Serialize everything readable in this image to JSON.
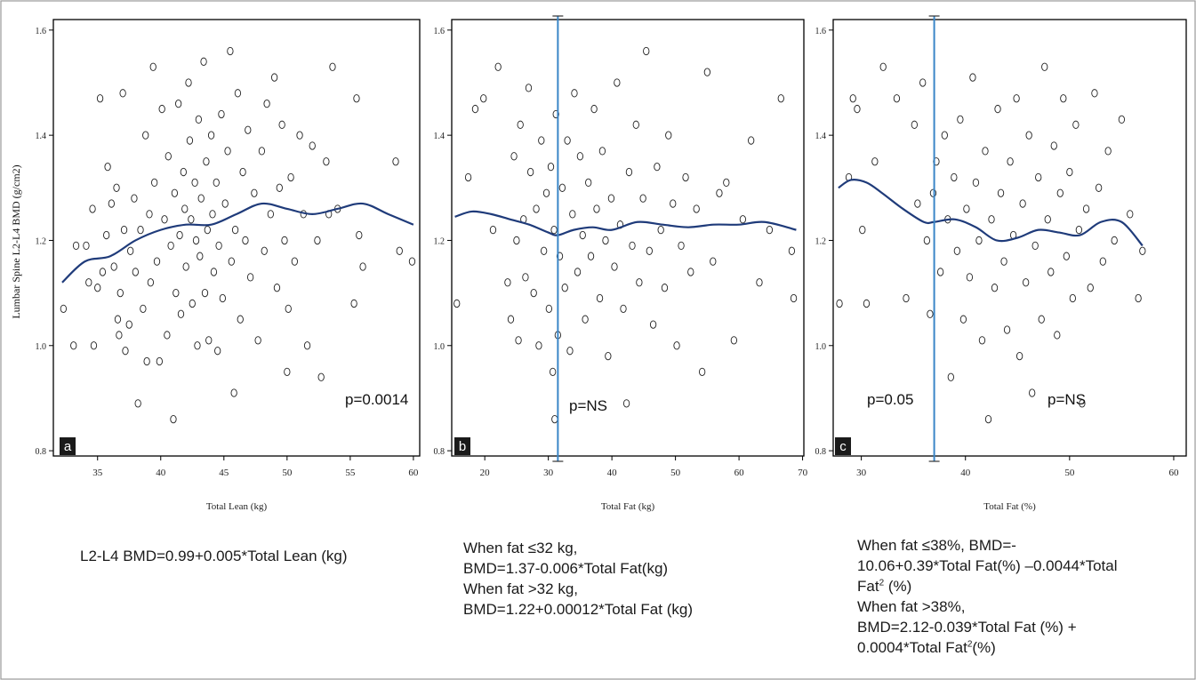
{
  "y_axis_label": "Lumbar Spine L2-L4 BMD (g/cm2)",
  "chart_data": [
    {
      "type": "scatter",
      "panel_letter": "a",
      "xlabel": "Total Lean (kg)",
      "ylabel": "Lumbar Spine L2-L4 BMD (g/cm2)",
      "xlim": [
        31.5,
        60.5
      ],
      "ylim": [
        0.79,
        1.62
      ],
      "xticks": [
        35,
        40,
        45,
        50,
        55,
        60
      ],
      "yticks": [
        0.8,
        1.0,
        1.2,
        1.4,
        1.6
      ],
      "p_text": "p=0.0014",
      "smooth_line": {
        "x": [
          32.2,
          34,
          36,
          38,
          40,
          42,
          44,
          46,
          48,
          50,
          52,
          54,
          56,
          58,
          60
        ],
        "y": [
          1.12,
          1.16,
          1.17,
          1.2,
          1.22,
          1.23,
          1.23,
          1.25,
          1.27,
          1.26,
          1.25,
          1.26,
          1.27,
          1.25,
          1.23
        ]
      },
      "points": [
        [
          32.3,
          1.07
        ],
        [
          33.1,
          1.0
        ],
        [
          33.3,
          1.19
        ],
        [
          34.1,
          1.19
        ],
        [
          34.3,
          1.12
        ],
        [
          34.6,
          1.26
        ],
        [
          34.7,
          1.0
        ],
        [
          35.0,
          1.11
        ],
        [
          35.2,
          1.47
        ],
        [
          35.4,
          1.14
        ],
        [
          35.7,
          1.21
        ],
        [
          35.8,
          1.34
        ],
        [
          36.1,
          1.27
        ],
        [
          36.3,
          1.15
        ],
        [
          36.5,
          1.3
        ],
        [
          36.6,
          1.05
        ],
        [
          36.7,
          1.02
        ],
        [
          36.8,
          1.1
        ],
        [
          37.0,
          1.48
        ],
        [
          37.1,
          1.22
        ],
        [
          37.2,
          0.99
        ],
        [
          37.5,
          1.04
        ],
        [
          37.6,
          1.18
        ],
        [
          37.9,
          1.28
        ],
        [
          38.0,
          1.14
        ],
        [
          38.2,
          0.89
        ],
        [
          38.4,
          1.22
        ],
        [
          38.6,
          1.07
        ],
        [
          38.8,
          1.4
        ],
        [
          38.9,
          0.97
        ],
        [
          39.1,
          1.25
        ],
        [
          39.2,
          1.12
        ],
        [
          39.4,
          1.53
        ],
        [
          39.5,
          1.31
        ],
        [
          39.7,
          1.16
        ],
        [
          39.9,
          0.97
        ],
        [
          40.1,
          1.45
        ],
        [
          40.3,
          1.24
        ],
        [
          40.5,
          1.02
        ],
        [
          40.6,
          1.36
        ],
        [
          40.8,
          1.19
        ],
        [
          41.0,
          0.86
        ],
        [
          41.1,
          1.29
        ],
        [
          41.2,
          1.1
        ],
        [
          41.4,
          1.46
        ],
        [
          41.5,
          1.21
        ],
        [
          41.6,
          1.06
        ],
        [
          41.8,
          1.33
        ],
        [
          41.9,
          1.26
        ],
        [
          42.0,
          1.15
        ],
        [
          42.2,
          1.5
        ],
        [
          42.3,
          1.39
        ],
        [
          42.4,
          1.24
        ],
        [
          42.5,
          1.08
        ],
        [
          42.7,
          1.31
        ],
        [
          42.8,
          1.2
        ],
        [
          42.9,
          1.0
        ],
        [
          43.0,
          1.43
        ],
        [
          43.1,
          1.17
        ],
        [
          43.2,
          1.28
        ],
        [
          43.4,
          1.54
        ],
        [
          43.5,
          1.1
        ],
        [
          43.6,
          1.35
        ],
        [
          43.7,
          1.22
        ],
        [
          43.8,
          1.01
        ],
        [
          44.0,
          1.4
        ],
        [
          44.1,
          1.25
        ],
        [
          44.2,
          1.14
        ],
        [
          44.4,
          1.31
        ],
        [
          44.5,
          0.99
        ],
        [
          44.6,
          1.19
        ],
        [
          44.8,
          1.44
        ],
        [
          44.9,
          1.09
        ],
        [
          45.1,
          1.27
        ],
        [
          45.3,
          1.37
        ],
        [
          45.5,
          1.56
        ],
        [
          45.6,
          1.16
        ],
        [
          45.8,
          0.91
        ],
        [
          45.9,
          1.22
        ],
        [
          46.1,
          1.48
        ],
        [
          46.3,
          1.05
        ],
        [
          46.5,
          1.33
        ],
        [
          46.7,
          1.2
        ],
        [
          46.9,
          1.41
        ],
        [
          47.1,
          1.13
        ],
        [
          47.4,
          1.29
        ],
        [
          47.7,
          1.01
        ],
        [
          48.0,
          1.37
        ],
        [
          48.2,
          1.18
        ],
        [
          48.4,
          1.46
        ],
        [
          48.7,
          1.25
        ],
        [
          49.0,
          1.51
        ],
        [
          49.2,
          1.11
        ],
        [
          49.4,
          1.3
        ],
        [
          49.6,
          1.42
        ],
        [
          49.8,
          1.2
        ],
        [
          50.0,
          0.95
        ],
        [
          50.1,
          1.07
        ],
        [
          50.3,
          1.32
        ],
        [
          50.6,
          1.16
        ],
        [
          51.0,
          1.4
        ],
        [
          51.3,
          1.25
        ],
        [
          51.6,
          1.0
        ],
        [
          52.0,
          1.38
        ],
        [
          52.4,
          1.2
        ],
        [
          52.7,
          0.94
        ],
        [
          53.1,
          1.35
        ],
        [
          53.3,
          1.25
        ],
        [
          53.6,
          1.53
        ],
        [
          54.0,
          1.26
        ],
        [
          55.3,
          1.08
        ],
        [
          55.5,
          1.47
        ],
        [
          55.7,
          1.21
        ],
        [
          56.0,
          1.15
        ],
        [
          58.6,
          1.35
        ],
        [
          58.9,
          1.18
        ],
        [
          59.9,
          1.16
        ]
      ]
    },
    {
      "type": "scatter",
      "panel_letter": "b",
      "xlabel": "Total Fat (kg)",
      "ylabel": "",
      "xlim": [
        14.8,
        70.2
      ],
      "ylim": [
        0.79,
        1.62
      ],
      "xticks": [
        20,
        30,
        40,
        50,
        60,
        70
      ],
      "yticks": [
        0.8,
        1.0,
        1.2,
        1.4,
        1.6
      ],
      "p_text": "p=NS",
      "vline_x": 31.5,
      "smooth_line": {
        "x": [
          15.3,
          18,
          21,
          24,
          27,
          30,
          31.5,
          34,
          37,
          40,
          44,
          48,
          52,
          56,
          60,
          64,
          69
        ],
        "y": [
          1.245,
          1.255,
          1.25,
          1.24,
          1.23,
          1.215,
          1.21,
          1.22,
          1.225,
          1.22,
          1.235,
          1.23,
          1.225,
          1.23,
          1.23,
          1.235,
          1.22
        ]
      },
      "points": [
        [
          15.6,
          1.08
        ],
        [
          17.4,
          1.32
        ],
        [
          18.5,
          1.45
        ],
        [
          19.8,
          1.47
        ],
        [
          21.3,
          1.22
        ],
        [
          22.1,
          1.53
        ],
        [
          23.6,
          1.12
        ],
        [
          24.1,
          1.05
        ],
        [
          24.6,
          1.36
        ],
        [
          25.0,
          1.2
        ],
        [
          25.3,
          1.01
        ],
        [
          25.6,
          1.42
        ],
        [
          26.1,
          1.24
        ],
        [
          26.4,
          1.13
        ],
        [
          26.9,
          1.49
        ],
        [
          27.2,
          1.33
        ],
        [
          27.7,
          1.1
        ],
        [
          28.1,
          1.26
        ],
        [
          28.5,
          1.0
        ],
        [
          28.9,
          1.39
        ],
        [
          29.3,
          1.18
        ],
        [
          29.7,
          1.29
        ],
        [
          30.1,
          1.07
        ],
        [
          30.4,
          1.34
        ],
        [
          30.7,
          0.95
        ],
        [
          30.9,
          1.22
        ],
        [
          31.0,
          0.86
        ],
        [
          31.2,
          1.44
        ],
        [
          31.5,
          1.02
        ],
        [
          31.8,
          1.17
        ],
        [
          32.2,
          1.3
        ],
        [
          32.6,
          1.11
        ],
        [
          33.0,
          1.39
        ],
        [
          33.4,
          0.99
        ],
        [
          33.8,
          1.25
        ],
        [
          34.1,
          1.48
        ],
        [
          34.6,
          1.14
        ],
        [
          35.0,
          1.36
        ],
        [
          35.4,
          1.21
        ],
        [
          35.8,
          1.05
        ],
        [
          36.3,
          1.31
        ],
        [
          36.7,
          1.17
        ],
        [
          37.2,
          1.45
        ],
        [
          37.6,
          1.26
        ],
        [
          38.1,
          1.09
        ],
        [
          38.5,
          1.37
        ],
        [
          39.0,
          1.2
        ],
        [
          39.4,
          0.98
        ],
        [
          39.9,
          1.28
        ],
        [
          40.4,
          1.15
        ],
        [
          40.8,
          1.5
        ],
        [
          41.3,
          1.23
        ],
        [
          41.8,
          1.07
        ],
        [
          42.3,
          0.89
        ],
        [
          42.7,
          1.33
        ],
        [
          43.2,
          1.19
        ],
        [
          43.8,
          1.42
        ],
        [
          44.3,
          1.12
        ],
        [
          44.9,
          1.28
        ],
        [
          45.4,
          1.56
        ],
        [
          45.9,
          1.18
        ],
        [
          46.5,
          1.04
        ],
        [
          47.1,
          1.34
        ],
        [
          47.7,
          1.22
        ],
        [
          48.3,
          1.11
        ],
        [
          48.9,
          1.4
        ],
        [
          49.6,
          1.27
        ],
        [
          50.2,
          1.0
        ],
        [
          50.9,
          1.19
        ],
        [
          51.6,
          1.32
        ],
        [
          52.4,
          1.14
        ],
        [
          53.3,
          1.26
        ],
        [
          54.2,
          0.95
        ],
        [
          55.0,
          1.52
        ],
        [
          55.9,
          1.16
        ],
        [
          56.9,
          1.29
        ],
        [
          58.0,
          1.31
        ],
        [
          59.2,
          1.01
        ],
        [
          60.6,
          1.24
        ],
        [
          61.9,
          1.39
        ],
        [
          63.2,
          1.12
        ],
        [
          64.8,
          1.22
        ],
        [
          66.6,
          1.47
        ],
        [
          68.3,
          1.18
        ],
        [
          68.6,
          1.09
        ]
      ]
    },
    {
      "type": "scatter",
      "panel_letter": "c",
      "xlabel": "Total Fat (%)",
      "ylabel": "",
      "xlim": [
        27.3,
        61.2
      ],
      "ylim": [
        0.79,
        1.62
      ],
      "xticks": [
        30,
        40,
        50,
        60
      ],
      "yticks": [
        0.8,
        1.0,
        1.2,
        1.4,
        1.6
      ],
      "p_left_text": "p=0.05",
      "p_text": "p=NS",
      "vline_x": 37.0,
      "smooth_line": {
        "x": [
          27.8,
          29,
          30.5,
          32,
          34,
          36,
          37,
          39,
          41,
          43,
          45,
          47,
          49,
          51,
          53,
          55,
          57
        ],
        "y": [
          1.3,
          1.315,
          1.31,
          1.29,
          1.26,
          1.235,
          1.235,
          1.24,
          1.225,
          1.2,
          1.205,
          1.22,
          1.215,
          1.21,
          1.235,
          1.235,
          1.19
        ]
      },
      "points": [
        [
          27.9,
          1.08
        ],
        [
          28.8,
          1.32
        ],
        [
          29.2,
          1.47
        ],
        [
          29.6,
          1.45
        ],
        [
          30.1,
          1.22
        ],
        [
          30.5,
          1.08
        ],
        [
          31.3,
          1.35
        ],
        [
          32.1,
          1.53
        ],
        [
          33.4,
          1.47
        ],
        [
          34.3,
          1.09
        ],
        [
          35.1,
          1.42
        ],
        [
          35.4,
          1.27
        ],
        [
          35.9,
          1.5
        ],
        [
          36.3,
          1.2
        ],
        [
          36.6,
          1.06
        ],
        [
          36.9,
          1.29
        ],
        [
          37.2,
          1.35
        ],
        [
          37.6,
          1.14
        ],
        [
          38.0,
          1.4
        ],
        [
          38.3,
          1.24
        ],
        [
          38.6,
          0.94
        ],
        [
          38.9,
          1.32
        ],
        [
          39.2,
          1.18
        ],
        [
          39.5,
          1.43
        ],
        [
          39.8,
          1.05
        ],
        [
          40.1,
          1.26
        ],
        [
          40.4,
          1.13
        ],
        [
          40.7,
          1.51
        ],
        [
          41.0,
          1.31
        ],
        [
          41.3,
          1.2
        ],
        [
          41.6,
          1.01
        ],
        [
          41.9,
          1.37
        ],
        [
          42.2,
          0.86
        ],
        [
          42.5,
          1.24
        ],
        [
          42.8,
          1.11
        ],
        [
          43.1,
          1.45
        ],
        [
          43.4,
          1.29
        ],
        [
          43.7,
          1.16
        ],
        [
          44.0,
          1.03
        ],
        [
          44.3,
          1.35
        ],
        [
          44.6,
          1.21
        ],
        [
          44.9,
          1.47
        ],
        [
          45.2,
          0.98
        ],
        [
          45.5,
          1.27
        ],
        [
          45.8,
          1.12
        ],
        [
          46.1,
          1.4
        ],
        [
          46.4,
          0.91
        ],
        [
          46.7,
          1.19
        ],
        [
          47.0,
          1.32
        ],
        [
          47.3,
          1.05
        ],
        [
          47.6,
          1.53
        ],
        [
          47.9,
          1.24
        ],
        [
          48.2,
          1.14
        ],
        [
          48.5,
          1.38
        ],
        [
          48.8,
          1.02
        ],
        [
          49.1,
          1.29
        ],
        [
          49.4,
          1.47
        ],
        [
          49.7,
          1.17
        ],
        [
          50.0,
          1.33
        ],
        [
          50.3,
          1.09
        ],
        [
          50.6,
          1.42
        ],
        [
          50.9,
          1.22
        ],
        [
          51.2,
          0.89
        ],
        [
          51.6,
          1.26
        ],
        [
          52.0,
          1.11
        ],
        [
          52.4,
          1.48
        ],
        [
          52.8,
          1.3
        ],
        [
          53.2,
          1.16
        ],
        [
          53.7,
          1.37
        ],
        [
          54.3,
          1.2
        ],
        [
          55.0,
          1.43
        ],
        [
          55.8,
          1.25
        ],
        [
          56.6,
          1.09
        ],
        [
          57.0,
          1.18
        ]
      ]
    }
  ],
  "equations": {
    "a": [
      "L2-L4 BMD=0.99+0.005*Total Lean (kg)"
    ],
    "b": [
      "When fat ≤32 kg,",
      "BMD=1.37-0.006*Total Fat(kg)",
      "When  fat >32 kg,",
      "BMD=1.22+0.00012*Total Fat (kg)"
    ],
    "c": [
      {
        "text": "When fat ≤38%, BMD=-"
      },
      {
        "text": "10.06+0.39*Total Fat(%) –0.0044*Total"
      },
      {
        "text": "Fat",
        "sup": "2",
        "tail": " (%)"
      },
      {
        "text": "When  fat >38%,"
      },
      {
        "text": "BMD=2.12-0.039*Total Fat (%) +"
      },
      {
        "text": "0.0004*Total Fat",
        "sup": "2",
        "tail": "(%)"
      }
    ]
  },
  "colors": {
    "smooth_line": "#1f3b7a",
    "vline": "#3a86c8",
    "marker": "#222222",
    "axis": "#000000",
    "label_box": "#1a1a1a"
  }
}
